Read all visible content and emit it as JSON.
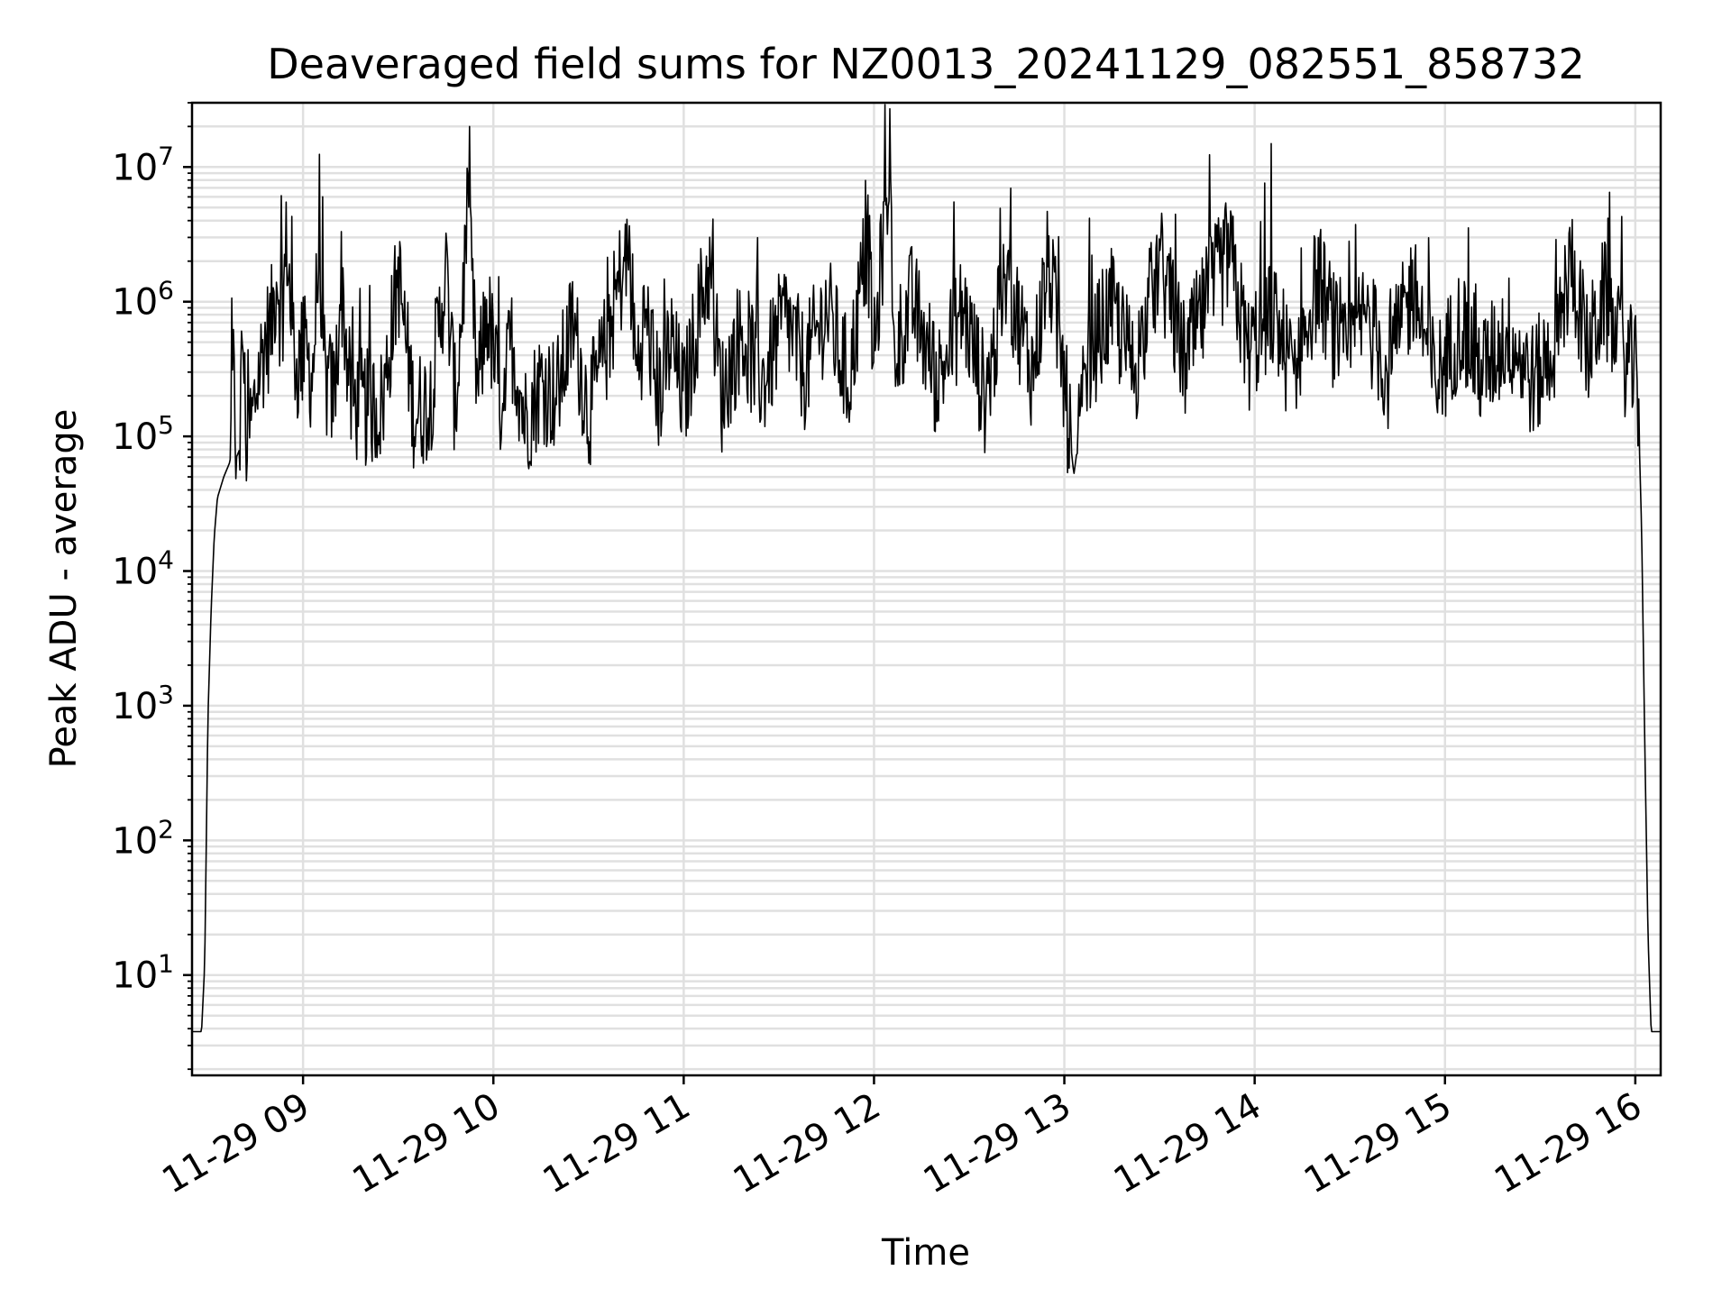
{
  "chart_data": {
    "type": "line",
    "title": "Deaveraged field sums for NZ0013_20241129_082551_858732",
    "xlabel": "Time",
    "ylabel": "Peak ADU - average",
    "yscale": "log",
    "xlim": [
      "2024-11-29 08:25",
      "2024-11-29 16:08"
    ],
    "ylim": [
      1.8,
      30000000
    ],
    "grid": true,
    "x_tick_labels": [
      "11-29 09",
      "11-29 10",
      "11-29 11",
      "11-29 12",
      "11-29 13",
      "11-29 14",
      "11-29 15",
      "11-29 16"
    ],
    "x_tick_values": [
      "2024-11-29 09:00",
      "2024-11-29 10:00",
      "2024-11-29 11:00",
      "2024-11-29 12:00",
      "2024-11-29 13:00",
      "2024-11-29 14:00",
      "2024-11-29 15:00",
      "2024-11-29 16:00"
    ],
    "y_tick_values": [
      10,
      100,
      1000,
      10000,
      100000,
      1000000,
      10000000
    ],
    "y_tick_labels": [
      {
        "base": "10",
        "exp": "1"
      },
      {
        "base": "10",
        "exp": "2"
      },
      {
        "base": "10",
        "exp": "3"
      },
      {
        "base": "10",
        "exp": "4"
      },
      {
        "base": "10",
        "exp": "5"
      },
      {
        "base": "10",
        "exp": "6"
      },
      {
        "base": "10",
        "exp": "7"
      }
    ],
    "series": [
      {
        "color": "#000000",
        "points": [
          [
            "2024-11-29 08:25",
            3.8
          ],
          [
            "2024-11-29 08:26",
            3.8
          ],
          [
            "2024-11-29 08:28",
            3.8
          ],
          [
            "2024-11-29 08:29",
            12
          ],
          [
            "2024-11-29 08:30",
            800
          ],
          [
            "2024-11-29 08:31",
            5000
          ],
          [
            "2024-11-29 08:32",
            18000
          ],
          [
            "2024-11-29 08:33",
            35000
          ],
          [
            "2024-11-29 08:35",
            50000
          ],
          [
            "2024-11-29 08:37",
            65000
          ],
          [
            "2024-11-29 08:38",
            300000
          ],
          [
            "2024-11-29 08:39",
            70000
          ],
          [
            "2024-11-29 08:40",
            80000
          ],
          [
            "2024-11-29 08:41",
            700000
          ],
          [
            "2024-11-29 08:42",
            90000
          ],
          [
            "2024-11-29 08:44",
            130000
          ],
          [
            "2024-11-29 08:46",
            300000
          ],
          [
            "2024-11-29 08:48",
            500000
          ],
          [
            "2024-11-29 08:50",
            650000
          ],
          [
            "2024-11-29 08:52",
            1900000
          ],
          [
            "2024-11-29 08:53",
            600000
          ],
          [
            "2024-11-29 08:55",
            3000000
          ],
          [
            "2024-11-29 08:56",
            900000
          ],
          [
            "2024-11-29 08:58",
            300000
          ],
          [
            "2024-11-29 09:00",
            450000
          ],
          [
            "2024-11-29 09:03",
            280000
          ],
          [
            "2024-11-29 09:05",
            2300000
          ],
          [
            "2024-11-29 09:07",
            250000
          ],
          [
            "2024-11-29 09:10",
            200000
          ],
          [
            "2024-11-29 09:12",
            1500000
          ],
          [
            "2024-11-29 09:15",
            180000
          ],
          [
            "2024-11-29 09:20",
            160000
          ],
          [
            "2024-11-29 09:25",
            170000
          ],
          [
            "2024-11-29 09:30",
            1600000
          ],
          [
            "2024-11-29 09:35",
            150000
          ],
          [
            "2024-11-29 09:40",
            180000
          ],
          [
            "2024-11-29 09:45",
            1700000
          ],
          [
            "2024-11-29 09:48",
            160000
          ],
          [
            "2024-11-29 09:52",
            4500000
          ],
          [
            "2024-11-29 09:55",
            200000
          ],
          [
            "2024-11-29 09:58",
            900000
          ],
          [
            "2024-11-29 10:02",
            180000
          ],
          [
            "2024-11-29 10:06",
            500000
          ],
          [
            "2024-11-29 10:10",
            130000
          ],
          [
            "2024-11-29 10:15",
            250000
          ],
          [
            "2024-11-29 10:20",
            200000
          ],
          [
            "2024-11-29 10:25",
            700000
          ],
          [
            "2024-11-29 10:30",
            150000
          ],
          [
            "2024-11-29 10:35",
            400000
          ],
          [
            "2024-11-29 10:40",
            1500000
          ],
          [
            "2024-11-29 10:43",
            2200000
          ],
          [
            "2024-11-29 10:45",
            300000
          ],
          [
            "2024-11-29 10:48",
            800000
          ],
          [
            "2024-11-29 10:52",
            200000
          ],
          [
            "2024-11-29 10:56",
            500000
          ],
          [
            "2024-11-29 11:00",
            180000
          ],
          [
            "2024-11-29 11:05",
            900000
          ],
          [
            "2024-11-29 11:08",
            1800000
          ],
          [
            "2024-11-29 11:12",
            200000
          ],
          [
            "2024-11-29 11:18",
            600000
          ],
          [
            "2024-11-29 11:25",
            250000
          ],
          [
            "2024-11-29 11:32",
            800000
          ],
          [
            "2024-11-29 11:38",
            300000
          ],
          [
            "2024-11-29 11:45",
            900000
          ],
          [
            "2024-11-29 11:52",
            250000
          ],
          [
            "2024-11-29 11:58",
            3000000
          ],
          [
            "2024-11-29 12:00",
            350000
          ],
          [
            "2024-11-29 12:05",
            14000000
          ],
          [
            "2024-11-29 12:06",
            400000
          ],
          [
            "2024-11-29 12:12",
            1000000
          ],
          [
            "2024-11-29 12:20",
            250000
          ],
          [
            "2024-11-29 12:28",
            900000
          ],
          [
            "2024-11-29 12:35",
            200000
          ],
          [
            "2024-11-29 12:42",
            1500000
          ],
          [
            "2024-11-29 12:50",
            300000
          ],
          [
            "2024-11-29 12:55",
            2000000
          ],
          [
            "2024-11-29 13:00",
            250000
          ],
          [
            "2024-11-29 13:03",
            52000
          ],
          [
            "2024-11-29 13:08",
            400000
          ],
          [
            "2024-11-29 13:15",
            900000
          ],
          [
            "2024-11-29 13:22",
            300000
          ],
          [
            "2024-11-29 13:30",
            2000000
          ],
          [
            "2024-11-29 13:38",
            350000
          ],
          [
            "2024-11-29 13:45",
            1000000
          ],
          [
            "2024-11-29 13:52",
            2300000
          ],
          [
            "2024-11-29 13:58",
            400000
          ],
          [
            "2024-11-29 14:05",
            900000
          ],
          [
            "2024-11-29 14:12",
            300000
          ],
          [
            "2024-11-29 14:20",
            1500000
          ],
          [
            "2024-11-29 14:28",
            350000
          ],
          [
            "2024-11-29 14:35",
            800000
          ],
          [
            "2024-11-29 14:42",
            300000
          ],
          [
            "2024-11-29 14:50",
            1300000
          ],
          [
            "2024-11-29 14:57",
            250000
          ],
          [
            "2024-11-29 15:05",
            700000
          ],
          [
            "2024-11-29 15:12",
            300000
          ],
          [
            "2024-11-29 15:20",
            600000
          ],
          [
            "2024-11-29 15:28",
            250000
          ],
          [
            "2024-11-29 15:35",
            500000
          ],
          [
            "2024-11-29 15:40",
            2000000
          ],
          [
            "2024-11-29 15:45",
            400000
          ],
          [
            "2024-11-29 15:50",
            1100000
          ],
          [
            "2024-11-29 15:55",
            450000
          ],
          [
            "2024-11-29 16:00",
            300000
          ],
          [
            "2024-11-29 16:01",
            150000
          ],
          [
            "2024-11-29 16:02",
            20000
          ],
          [
            "2024-11-29 16:03",
            500
          ],
          [
            "2024-11-29 16:04",
            20
          ],
          [
            "2024-11-29 16:05",
            3.8
          ],
          [
            "2024-11-29 16:08",
            3.8
          ]
        ]
      }
    ]
  }
}
